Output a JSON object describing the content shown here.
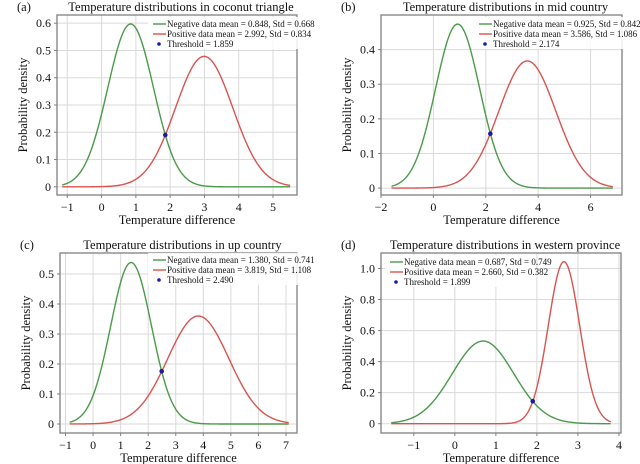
{
  "chart_data": [
    {
      "type": "line",
      "panel_label": "(a)",
      "title": "Temperature distributions in coconut triangle",
      "xlabel": "Temperature difference",
      "ylabel": "Probability density",
      "xlim": [
        -1.3,
        5.7
      ],
      "ylim": [
        -0.03,
        0.63
      ],
      "xticks": [
        -1,
        0,
        1,
        2,
        3,
        4,
        5
      ],
      "xtick_labels": [
        "−1",
        "0",
        "1",
        "2",
        "3",
        "4",
        "5"
      ],
      "yticks": [
        0,
        0.1,
        0.2,
        0.3,
        0.4,
        0.5,
        0.6
      ],
      "ytick_labels": [
        "0",
        "0.1",
        "0.2",
        "0.3",
        "0.4",
        "0.5",
        "0.6"
      ],
      "x_range": [
        -1.15,
        5.5
      ],
      "grid": true,
      "legend_position": "top-right",
      "series": [
        {
          "name": "Negative data mean = 0.848, Std = 0.668",
          "distribution": "normal",
          "mean": 0.848,
          "std": 0.668,
          "color": "#4a9a4a"
        },
        {
          "name": "Positive data mean = 2.992, Std = 0.834",
          "distribution": "normal",
          "mean": 2.992,
          "std": 0.834,
          "color": "#d9534f"
        }
      ],
      "threshold": {
        "name": "Threshold = 1.859",
        "x": 1.859,
        "y": 0.19,
        "color": "#1a1aa0"
      }
    },
    {
      "type": "line",
      "panel_label": "(b)",
      "title": "Temperature distributions in mid country",
      "xlabel": "Temperature difference",
      "ylabel": "Probability density",
      "xlim": [
        -2.0,
        7.2
      ],
      "ylim": [
        -0.02,
        0.5
      ],
      "xticks": [
        -2,
        0,
        2,
        4,
        6
      ],
      "xtick_labels": [
        "−2",
        "0",
        "2",
        "4",
        "6"
      ],
      "yticks": [
        0,
        0.1,
        0.2,
        0.3,
        0.4
      ],
      "ytick_labels": [
        "0",
        "0.1",
        "0.2",
        "0.3",
        "0.4"
      ],
      "x_range": [
        -1.6,
        6.85
      ],
      "grid": true,
      "legend_position": "top-right",
      "series": [
        {
          "name": "Negative data mean = 0.925, Std = 0.842",
          "distribution": "normal",
          "mean": 0.925,
          "std": 0.842,
          "color": "#4a9a4a"
        },
        {
          "name": "Positive data mean = 3.586, Std = 1.086",
          "distribution": "normal",
          "mean": 3.586,
          "std": 1.086,
          "color": "#d9534f"
        }
      ],
      "threshold": {
        "name": "Threshold = 2.174",
        "x": 2.174,
        "y": 0.157,
        "color": "#1a1aa0"
      }
    },
    {
      "type": "line",
      "panel_label": "(c)",
      "title": "Temperature distributions in up country",
      "xlabel": "Temperature difference",
      "ylabel": "Probability density",
      "xlim": [
        -1.2,
        7.4
      ],
      "ylim": [
        -0.03,
        0.57
      ],
      "xticks": [
        -1,
        0,
        1,
        2,
        3,
        4,
        5,
        6,
        7
      ],
      "xtick_labels": [
        "−1",
        "0",
        "1",
        "2",
        "3",
        "4",
        "5",
        "6",
        "7"
      ],
      "yticks": [
        0,
        0.1,
        0.2,
        0.3,
        0.4,
        0.5
      ],
      "ytick_labels": [
        "0",
        "0.1",
        "0.2",
        "0.3",
        "0.4",
        "0.5"
      ],
      "x_range": [
        -0.85,
        7.1
      ],
      "grid": true,
      "legend_position": "top-right",
      "series": [
        {
          "name": "Negative data mean = 1.380, Std = 0.741",
          "distribution": "normal",
          "mean": 1.38,
          "std": 0.741,
          "color": "#4a9a4a"
        },
        {
          "name": "Positive data mean = 3.819, Std = 1.108",
          "distribution": "normal",
          "mean": 3.819,
          "std": 1.108,
          "color": "#d9534f"
        }
      ],
      "threshold": {
        "name": "Threshold = 2.490",
        "x": 2.49,
        "y": 0.176,
        "color": "#1a1aa0"
      }
    },
    {
      "type": "line",
      "panel_label": "(d)",
      "title": "Temperature distributions in western province",
      "xlabel": "Temperature difference",
      "ylabel": "Probability density",
      "xlim": [
        -1.8,
        4.05
      ],
      "ylim": [
        -0.06,
        1.1
      ],
      "xticks": [
        -1,
        0,
        1,
        2,
        3,
        4
      ],
      "xtick_labels": [
        "−1",
        "0",
        "1",
        "2",
        "3",
        "4"
      ],
      "yticks": [
        0,
        0.2,
        0.4,
        0.6,
        0.8,
        1.0
      ],
      "ytick_labels": [
        "0",
        "0.2",
        "0.4",
        "0.6",
        "0.8",
        "1.0"
      ],
      "x_range": [
        -1.55,
        3.8
      ],
      "grid": true,
      "legend_position": "top-left",
      "series": [
        {
          "name": "Negative data mean = 0.687, Std = 0.749",
          "distribution": "normal",
          "mean": 0.687,
          "std": 0.749,
          "color": "#4a9a4a"
        },
        {
          "name": "Positive data mean = 2.660, Std = 0.382",
          "distribution": "normal",
          "mean": 2.66,
          "std": 0.382,
          "color": "#d9534f"
        }
      ],
      "threshold": {
        "name": "Threshold = 1.899",
        "x": 1.899,
        "y": 0.145,
        "color": "#1a1aa0"
      }
    }
  ]
}
